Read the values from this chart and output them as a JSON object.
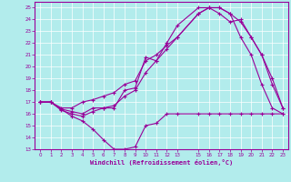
{
  "xlabel": "Windchill (Refroidissement éolien,°C)",
  "bg_color": "#b2ecec",
  "line_color": "#990099",
  "grid_color": "#ffffff",
  "ylim": [
    13,
    25.5
  ],
  "xlim": [
    -0.5,
    23.5
  ],
  "yticks": [
    13,
    14,
    15,
    16,
    17,
    18,
    19,
    20,
    21,
    22,
    23,
    24,
    25
  ],
  "xtick_vals": [
    0,
    1,
    2,
    3,
    4,
    5,
    6,
    7,
    8,
    9,
    10,
    11,
    12,
    13,
    15,
    16,
    17,
    18,
    19,
    20,
    21,
    22,
    23
  ],
  "xtick_labels": [
    "0",
    "1",
    "2",
    "3",
    "4",
    "5",
    "6",
    "7",
    "8",
    "9",
    "10",
    "11",
    "12",
    "13",
    "15",
    "16",
    "17",
    "18",
    "19",
    "20",
    "21",
    "22",
    "23"
  ],
  "line1_x": [
    0,
    1,
    2,
    3,
    4,
    5,
    6,
    7,
    8,
    9,
    10,
    11,
    12,
    13,
    15,
    16,
    17,
    18,
    19,
    20,
    21,
    22,
    23
  ],
  "line1_y": [
    17.0,
    17.0,
    16.4,
    15.8,
    15.4,
    14.7,
    13.8,
    13.0,
    13.0,
    13.2,
    15.0,
    15.2,
    16.0,
    16.0,
    16.0,
    16.0,
    16.0,
    16.0,
    16.0,
    16.0,
    16.0,
    16.0,
    16.0
  ],
  "line2_x": [
    0,
    1,
    2,
    3,
    4,
    5,
    6,
    7,
    8,
    9,
    10,
    11,
    12,
    13,
    15,
    16,
    17,
    18,
    19,
    20,
    21,
    22,
    23
  ],
  "line2_y": [
    17.0,
    17.0,
    16.4,
    16.2,
    16.0,
    16.5,
    16.5,
    16.5,
    18.0,
    18.2,
    20.8,
    20.5,
    22.0,
    23.5,
    25.0,
    25.0,
    25.0,
    24.5,
    22.5,
    21.0,
    18.5,
    16.5,
    16.0
  ],
  "line3_x": [
    0,
    1,
    2,
    3,
    4,
    5,
    6,
    7,
    8,
    9,
    10,
    11,
    12,
    13,
    15,
    16,
    17,
    18,
    19,
    20,
    21,
    22,
    23
  ],
  "line3_y": [
    17.0,
    17.0,
    16.5,
    16.5,
    17.0,
    17.2,
    17.5,
    17.8,
    18.5,
    18.8,
    20.5,
    21.0,
    21.8,
    22.5,
    24.5,
    25.0,
    25.0,
    24.5,
    23.8,
    22.5,
    21.0,
    18.5,
    16.5
  ],
  "line4_x": [
    0,
    1,
    2,
    3,
    4,
    5,
    6,
    7,
    8,
    9,
    10,
    11,
    12,
    13,
    15,
    16,
    17,
    18,
    19,
    20,
    21,
    22,
    23
  ],
  "line4_y": [
    17.0,
    17.0,
    16.3,
    16.0,
    15.8,
    16.2,
    16.5,
    16.7,
    17.5,
    18.0,
    19.5,
    20.5,
    21.5,
    22.5,
    24.5,
    25.0,
    24.5,
    23.8,
    24.0,
    22.5,
    21.0,
    19.0,
    16.5
  ]
}
